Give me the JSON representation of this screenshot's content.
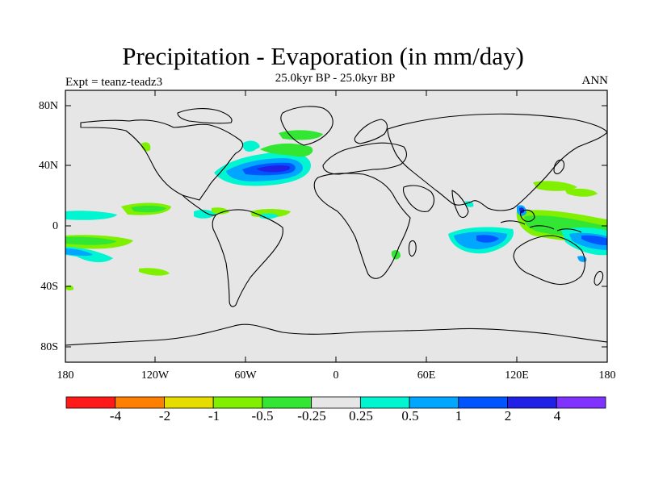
{
  "title": "Precipitation - Evaporation (in mm/day)",
  "subtitle": "25.0kyr BP - 25.0kyr BP",
  "experiment": "Expt = teanz-teadz3",
  "season": "ANN",
  "map": {
    "type": "filled-contour world map",
    "projection": "cylindrical equidistant",
    "lon_range": [
      -180,
      180
    ],
    "lat_range": [
      -90,
      90
    ],
    "background_value_class": "-0.25 to 0.25",
    "lat_ticks": [
      {
        "value": 80,
        "label": "80N"
      },
      {
        "value": 40,
        "label": "40N"
      },
      {
        "value": 0,
        "label": "0"
      },
      {
        "value": -40,
        "label": "40S"
      },
      {
        "value": -80,
        "label": "80S"
      }
    ],
    "lon_ticks": [
      {
        "value": -180,
        "label": "180"
      },
      {
        "value": -120,
        "label": "120W"
      },
      {
        "value": -60,
        "label": "60W"
      },
      {
        "value": 0,
        "label": "0"
      },
      {
        "value": 60,
        "label": "60E"
      },
      {
        "value": 120,
        "label": "120E"
      },
      {
        "value": 180,
        "label": "180"
      }
    ]
  },
  "colorbar": {
    "levels": [
      "-4",
      "-2",
      "-1",
      "-0.5",
      "-0.25",
      "0.25",
      "0.5",
      "1",
      "2",
      "4"
    ],
    "colors": [
      "#ff1a1a",
      "#ff8000",
      "#e6dc00",
      "#80f000",
      "#33e633",
      "#e6e6e6",
      "#00f5d0",
      "#00a6ff",
      "#0055ff",
      "#2020e6",
      "#8033ff"
    ]
  },
  "colors": {
    "land_ocean_fill": "#e6e6e6",
    "coastline": "#000000"
  }
}
